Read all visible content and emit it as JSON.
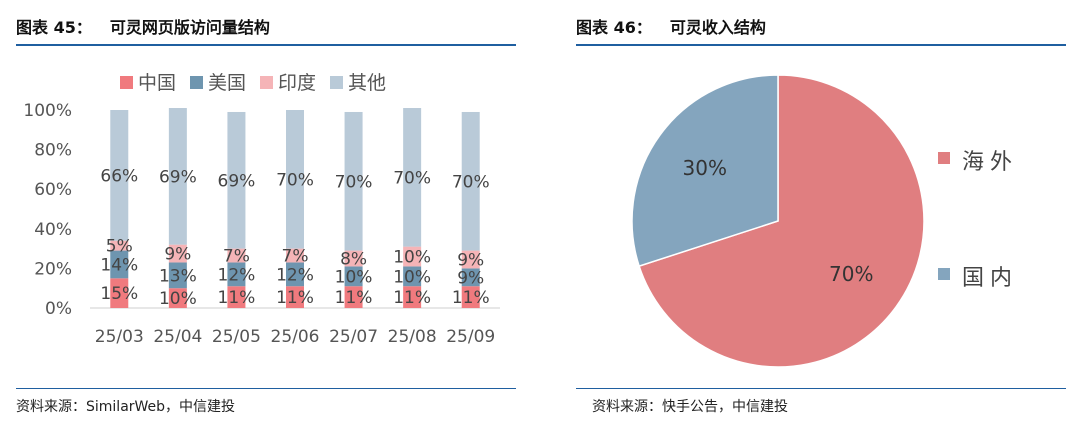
{
  "left": {
    "title_no": "图表 45：",
    "title": "可灵网页版访问量结构",
    "source": "资料来源：SimilarWeb，中信建投"
  },
  "right": {
    "title_no": "图表 46：",
    "title": "可灵收入结构",
    "source": "资料来源：快手公告，中信建投"
  },
  "chart_data": [
    {
      "type": "bar",
      "stacked": true,
      "percent": true,
      "categories": [
        "25/03",
        "25/04",
        "25/05",
        "25/06",
        "25/07",
        "25/08",
        "25/09"
      ],
      "yticks": [
        "0%",
        "20%",
        "40%",
        "60%",
        "80%",
        "100%"
      ],
      "ylim": [
        0,
        100
      ],
      "legend_position": "top",
      "series": [
        {
          "name": "中国",
          "color": "#f07a7e",
          "values": [
            15,
            10,
            11,
            11,
            11,
            11,
            11
          ]
        },
        {
          "name": "美国",
          "color": "#6e95af",
          "values": [
            14,
            13,
            12,
            12,
            10,
            10,
            9
          ]
        },
        {
          "name": "印度",
          "color": "#f5b4b7",
          "values": [
            5,
            9,
            7,
            7,
            8,
            10,
            9
          ]
        },
        {
          "name": "其他",
          "color": "#b9cad8",
          "values": [
            66,
            69,
            69,
            70,
            70,
            70,
            70
          ]
        }
      ]
    },
    {
      "type": "pie",
      "legend_position": "right",
      "slices": [
        {
          "name": "海外",
          "value": 70,
          "label": "70%",
          "color": "#e07e80"
        },
        {
          "name": "国内",
          "value": 30,
          "label": "30%",
          "color": "#84a5be"
        }
      ]
    }
  ]
}
